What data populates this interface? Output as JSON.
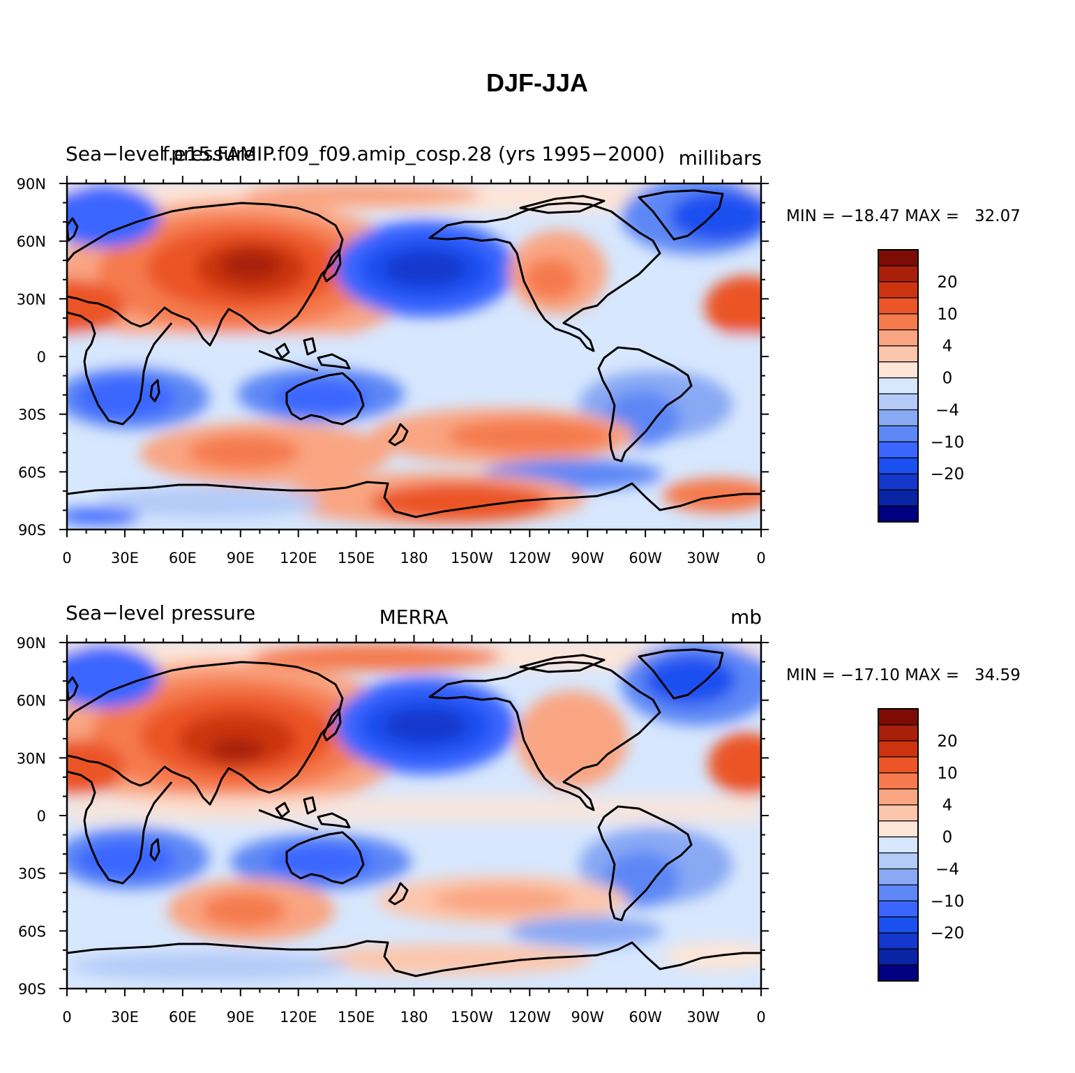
{
  "figure": {
    "title": "DJF-JJA"
  },
  "colorbar": {
    "colors": [
      "#000080",
      "#0a24a6",
      "#1437cc",
      "#1a4ff0",
      "#3a66ff",
      "#5d87f5",
      "#89a9f4",
      "#b4cbf8",
      "#d7e7fd",
      "#fde5d7",
      "#fcc6ac",
      "#f9a582",
      "#f57a4e",
      "#eb5528",
      "#cc3411",
      "#a8200a",
      "#7d0d04"
    ],
    "labels": [
      {
        "text": "20",
        "after_index": 14
      },
      {
        "text": "10",
        "after_index": 12
      },
      {
        "text": "4",
        "after_index": 10
      },
      {
        "text": "0",
        "after_index": 8
      },
      {
        "text": "−4",
        "after_index": 6
      },
      {
        "text": "−10",
        "after_index": 4
      },
      {
        "text": "−20",
        "after_index": 2
      }
    ]
  },
  "axes": {
    "lon_labels": [
      "0",
      "30E",
      "60E",
      "90E",
      "120E",
      "150E",
      "180",
      "150W",
      "120W",
      "90W",
      "60W",
      "30W",
      "0"
    ],
    "lat_labels": [
      "90N",
      "60N",
      "30N",
      "0",
      "30S",
      "60S",
      "90S"
    ]
  },
  "panels": [
    {
      "left_string": "Sea−level pressure",
      "center_string": "f.e15.FAMIP.f09_f09.amip_cosp.28 (yrs 1995−2000)",
      "right_string": "millibars",
      "min_max": "MIN = −18.47 MAX =   32.07"
    },
    {
      "left_string": "Sea−level pressure",
      "center_string": "MERRA",
      "right_string": "mb",
      "min_max": "MIN = −17.10 MAX =   34.59"
    }
  ]
}
